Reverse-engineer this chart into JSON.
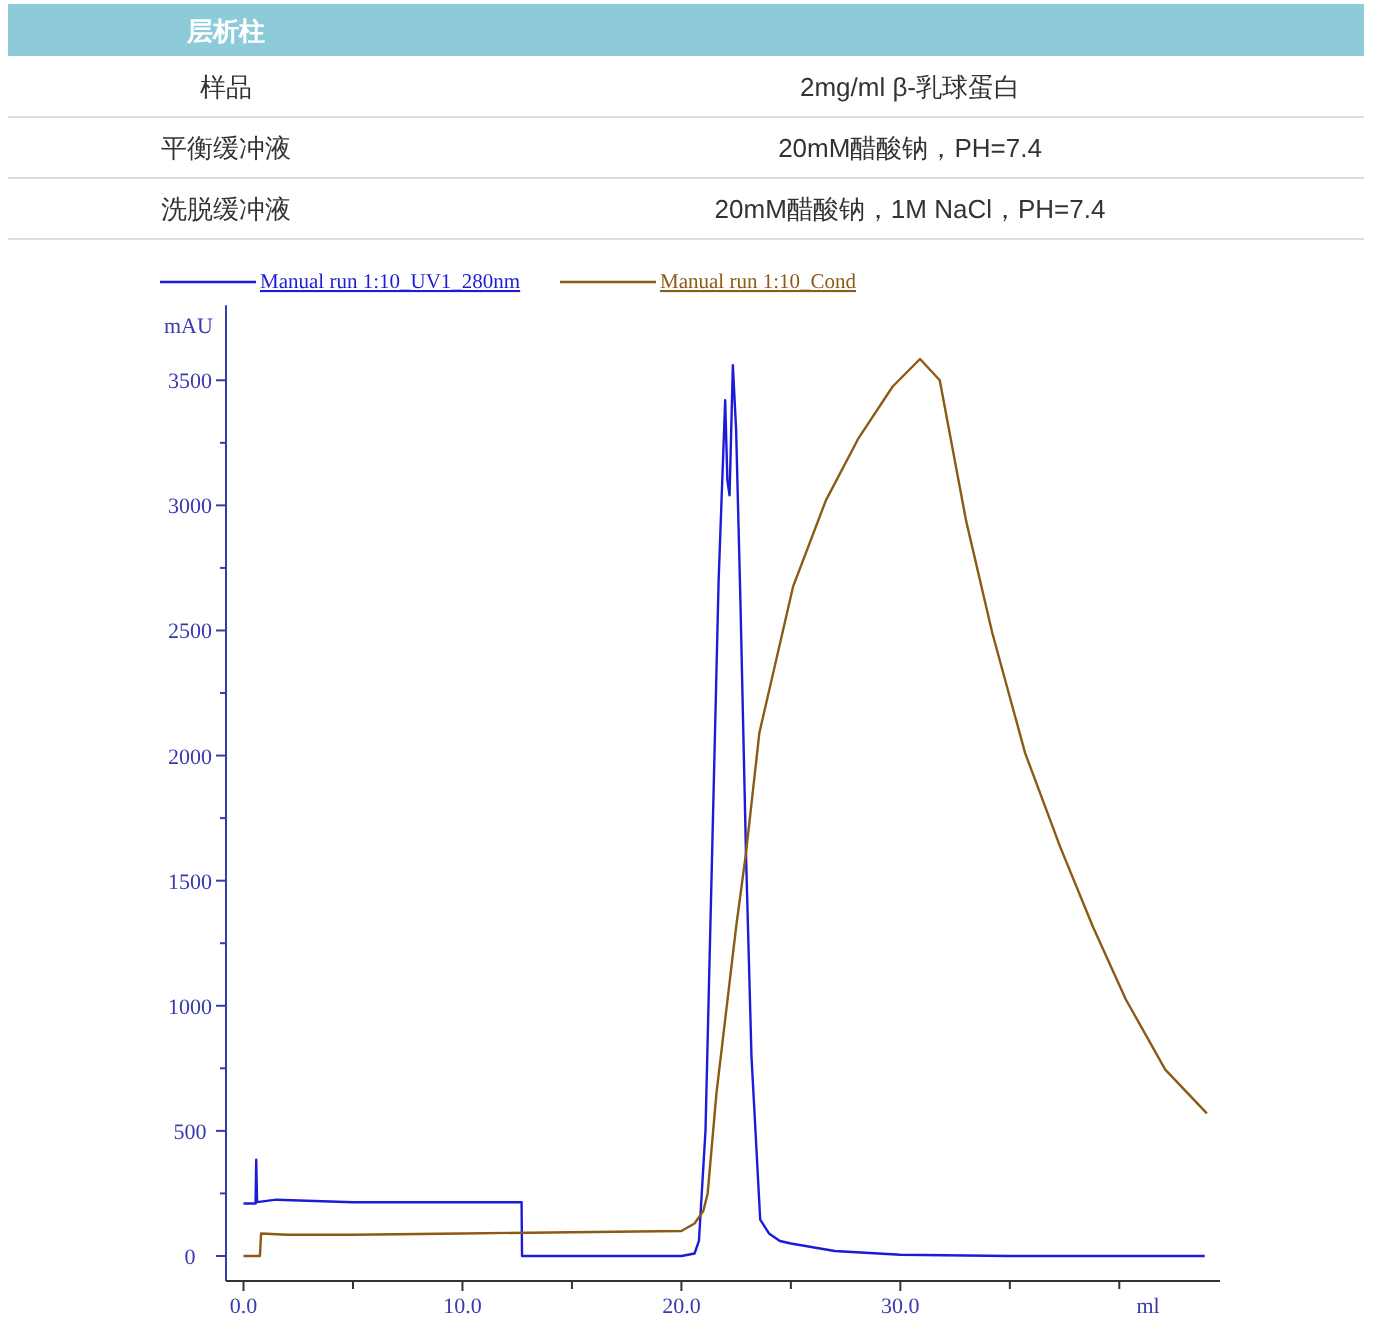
{
  "chart_data": {
    "type": "line",
    "annotations": [
      "层析柱",
      "样品",
      "2mg/ml β-乳球蛋白",
      "平衡缓冲液",
      "20mM醋酸钠，PH=7.4",
      "洗脱缓冲液",
      "20mM醋酸钠，1M NaCl，PH=7.4"
    ],
    "ylabel": "mAU",
    "xlabel": "ml",
    "xlim": [
      -0.8,
      44.6
    ],
    "ylim": [
      -100,
      3800
    ],
    "xticks": [
      {
        "value": 0,
        "label": "0.0"
      },
      {
        "value": 5,
        "label": null
      },
      {
        "value": 10,
        "label": "10.0"
      },
      {
        "value": 15,
        "label": null
      },
      {
        "value": 20,
        "label": "20.0"
      },
      {
        "value": 25,
        "label": null
      },
      {
        "value": 30,
        "label": "30.0"
      },
      {
        "value": 35,
        "label": null
      },
      {
        "value": 40,
        "label": null
      }
    ],
    "yticks": [
      0,
      500,
      1000,
      1500,
      2000,
      2500,
      3000,
      3500
    ],
    "legend": "top",
    "series": [
      {
        "name": "Manual run 1:10_UV1_280nm",
        "color": "#1c1cd8",
        "x": [
          0,
          0.55,
          0.58,
          0.62,
          1.5,
          5,
          10,
          12.7,
          12.72,
          15,
          20,
          20.6,
          20.8,
          21.1,
          21.4,
          21.7,
          22.0,
          22.1,
          22.2,
          22.35,
          22.5,
          22.7,
          22.95,
          23.2,
          23.6,
          24.0,
          24.5,
          25,
          26,
          27,
          28,
          30,
          35,
          40,
          43.9
        ],
        "values": [
          210,
          210,
          385,
          215,
          225,
          215,
          215,
          215,
          0,
          0,
          0,
          10,
          60,
          500,
          1600,
          2700,
          3420,
          3100,
          3040,
          3560,
          3300,
          2600,
          1610,
          800,
          145,
          90,
          60,
          50,
          35,
          20,
          15,
          5,
          0,
          0,
          0
        ]
      },
      {
        "name": "Manual run 1:10_Cond",
        "color": "#8b5a14",
        "x": [
          0,
          0.75,
          0.8,
          2,
          5,
          10,
          15,
          20,
          20.6,
          21.0,
          21.2,
          21.6,
          22.5,
          22.95,
          23.56,
          25.1,
          26.6,
          28.1,
          29.65,
          30.9,
          31.8,
          33.0,
          34.2,
          35.7,
          37.3,
          38.8,
          40.3,
          42.1,
          44.0
        ],
        "values": [
          0,
          0,
          90,
          85,
          85,
          90,
          95,
          100,
          130,
          180,
          250,
          650,
          1315,
          1610,
          2090,
          2675,
          3020,
          3270,
          3475,
          3585,
          3500,
          2940,
          2490,
          2010,
          1635,
          1315,
          1025,
          745,
          570
        ]
      }
    ]
  }
}
